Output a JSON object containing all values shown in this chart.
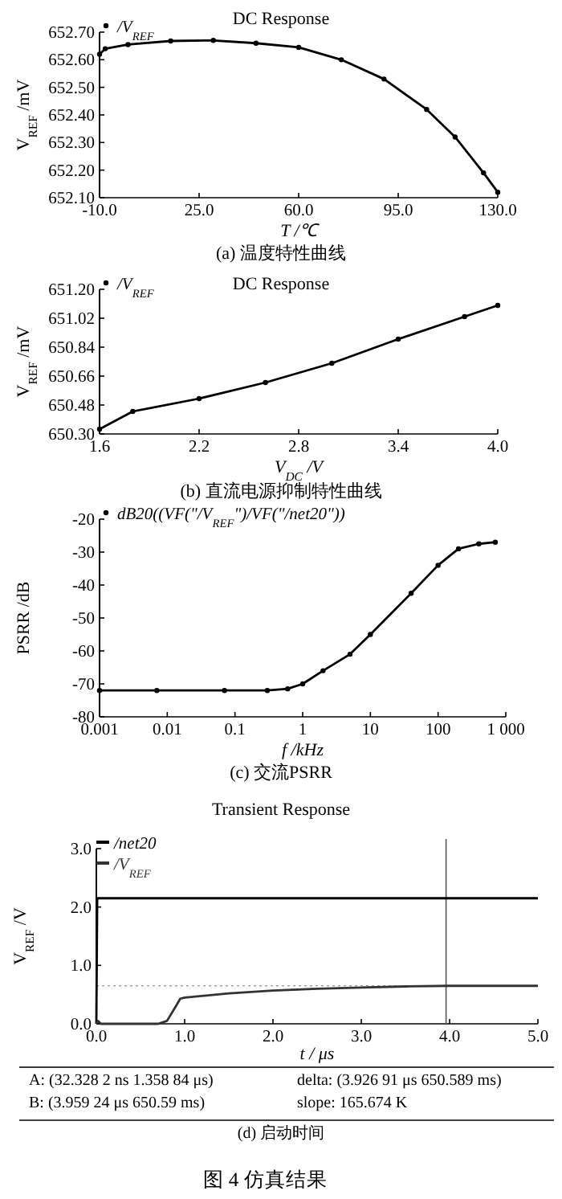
{
  "chart_data": [
    {
      "type": "line",
      "title": "DC Response",
      "xlabel": "T /℃",
      "ylabel": "V$_{REF}$ /mV",
      "xlim": [
        -10,
        130
      ],
      "xticks": [
        {
          "value": -10,
          "label": "-10.0"
        },
        {
          "value": 25,
          "label": "25.0"
        },
        {
          "value": 60,
          "label": "60.0"
        },
        {
          "value": 95,
          "label": "95.0"
        },
        {
          "value": 130,
          "label": "130.0"
        }
      ],
      "ylim": [
        652.1,
        652.7
      ],
      "yticks": [
        {
          "value": 652.1,
          "label": "652.10"
        },
        {
          "value": 652.2,
          "label": "652.20"
        },
        {
          "value": 652.3,
          "label": "652.30"
        },
        {
          "value": 652.4,
          "label": "652.40"
        },
        {
          "value": 652.5,
          "label": "652.50"
        },
        {
          "value": 652.6,
          "label": "652.60"
        },
        {
          "value": 652.7,
          "label": "652.70"
        }
      ],
      "legend": "top left",
      "marker": "circle",
      "line_style": "solid",
      "annotations": [
        "(a) 温度特性曲线"
      ],
      "series": [
        {
          "name": "/V$_{REF}$",
          "color": "#000000",
          "x": [
            -10,
            -8,
            0,
            15,
            30,
            45,
            60,
            75,
            90,
            105,
            115,
            125,
            130
          ],
          "values": [
            652.62,
            652.64,
            652.655,
            652.668,
            652.67,
            652.66,
            652.645,
            652.6,
            652.53,
            652.42,
            652.32,
            652.19,
            652.12
          ]
        }
      ]
    },
    {
      "type": "line",
      "title": "DC Response",
      "xlabel": "V$_{DC}$ /V",
      "ylabel": "V$_{REF}$ /mV",
      "xlim": [
        1.6,
        4.0
      ],
      "xticks": [
        1.6,
        2.2,
        2.8,
        3.4,
        {
          "value": 4.0,
          "label": "4.0"
        }
      ],
      "ylim": [
        650.3,
        651.2
      ],
      "yticks": [
        {
          "value": 650.3,
          "label": "650.30"
        },
        650.48,
        650.66,
        650.84,
        651.02,
        {
          "value": 651.2,
          "label": "651.20"
        }
      ],
      "legend": "top left",
      "marker": "circle",
      "line_style": "solid",
      "annotations": [
        "(b) 直流电源抑制特性曲线"
      ],
      "series": [
        {
          "name": "/V$_{REF}$",
          "color": "#000000",
          "x": [
            1.6,
            1.8,
            2.2,
            2.6,
            3.0,
            3.4,
            3.8,
            4.0
          ],
          "values": [
            650.33,
            650.44,
            650.52,
            650.62,
            650.74,
            650.89,
            651.03,
            651.1
          ]
        }
      ]
    },
    {
      "type": "line",
      "xlabel": "f /kHz",
      "ylabel": "PSRR /dB",
      "log": "x",
      "xlim": [
        0.001,
        1000
      ],
      "xticks": [
        0.001,
        0.01,
        0.1,
        1,
        10,
        100,
        {
          "value": 1000,
          "label": "1 000"
        }
      ],
      "ylim": [
        -80,
        -20
      ],
      "yticks": [
        -80,
        -70,
        -60,
        -50,
        -40,
        -30,
        -20
      ],
      "legend": "top left",
      "marker": "circle",
      "line_style": "solid",
      "annotations": [
        "(c) 交流PSRR"
      ],
      "series": [
        {
          "name": "dB20((VF(\"/V$_{REF}$\")/VF(\"/net20\"))",
          "color": "#000000",
          "x": [
            0.001,
            0.007,
            0.07,
            0.3,
            0.6,
            1,
            2,
            5,
            10,
            40,
            100,
            200,
            400,
            700
          ],
          "values": [
            -72,
            -72,
            -72,
            -72,
            -71.5,
            -70,
            -66,
            -61,
            -55,
            -42.5,
            -34,
            -29,
            -27.5,
            -27
          ]
        }
      ]
    },
    {
      "type": "line",
      "title": "Transient Response",
      "xlabel": "t / μs",
      "ylabel": "V$_{REF}$ /V",
      "xlim": [
        0,
        5
      ],
      "xticks": [
        {
          "value": 0,
          "label": "0.0"
        },
        {
          "value": 1,
          "label": "1.0"
        },
        {
          "value": 2,
          "label": "2.0"
        },
        {
          "value": 3,
          "label": "3.0"
        },
        {
          "value": 4,
          "label": "4.0"
        },
        {
          "value": 5,
          "label": "5.0"
        }
      ],
      "ylim": [
        0,
        3
      ],
      "yticks": [
        {
          "value": 0,
          "label": "0.0"
        },
        {
          "value": 1,
          "label": "1.0"
        },
        {
          "value": 2,
          "label": "2.0"
        },
        {
          "value": 3,
          "label": "3.0"
        }
      ],
      "legend": "top left",
      "line_style": "solid",
      "ref_lines": [
        {
          "axis": "x",
          "value": 3.96,
          "color": "#555555",
          "line_style": "solid"
        },
        {
          "axis": "y",
          "value": 0.65,
          "color": "#777777",
          "line_style": "dotted"
        }
      ],
      "annotations": [
        "A: (32.328 2 ns 1.358 84 μs)",
        "delta: (3.926 91 μs 650.589 ms)",
        "B: (3.959 24 μs 650.59 ms)",
        "slope: 165.674 K",
        "(d) 启动时间",
        "图 4  仿真结果"
      ],
      "series": [
        {
          "name": "/net20",
          "color": "#000000",
          "x": [
            0,
            0.01,
            2.5,
            5
          ],
          "values": [
            0,
            2.15,
            2.15,
            2.15
          ]
        },
        {
          "name": "/V$_{REF}$",
          "color": "#333333",
          "x": [
            0,
            0.02,
            0.05,
            0.7,
            0.8,
            0.9,
            0.95,
            1.0,
            1.5,
            2.0,
            2.5,
            3.0,
            3.5,
            4.0,
            4.5,
            5.0
          ],
          "values": [
            0,
            0.05,
            0,
            0,
            0.05,
            0.3,
            0.43,
            0.45,
            0.52,
            0.57,
            0.6,
            0.62,
            0.64,
            0.65,
            0.65,
            0.65
          ]
        }
      ]
    }
  ]
}
